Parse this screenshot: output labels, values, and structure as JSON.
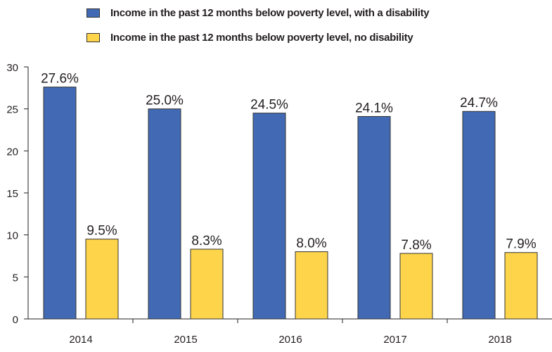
{
  "chart_data": {
    "type": "bar",
    "categories": [
      "2014",
      "2015",
      "2016",
      "2017",
      "2018"
    ],
    "series": [
      {
        "name": "Income in the past 12 months below poverty level, with a disability",
        "values": [
          27.6,
          25.0,
          24.5,
          24.1,
          24.7
        ],
        "labels": [
          "27.6%",
          "25.0%",
          "24.5%",
          "24.1%",
          "24.7%"
        ],
        "color": "#4169b4"
      },
      {
        "name": "Income in the past 12 months below poverty level, no disability",
        "values": [
          9.5,
          8.3,
          8.0,
          7.8,
          7.9
        ],
        "labels": [
          "9.5%",
          "8.3%",
          "8.0%",
          "7.8%",
          "7.9%"
        ],
        "color": "#fed44a"
      }
    ],
    "ylim": [
      0,
      30
    ],
    "yticks": [
      "0",
      "5",
      "10",
      "15",
      "20",
      "25",
      "30"
    ],
    "grid": false,
    "legend_position": "top"
  }
}
